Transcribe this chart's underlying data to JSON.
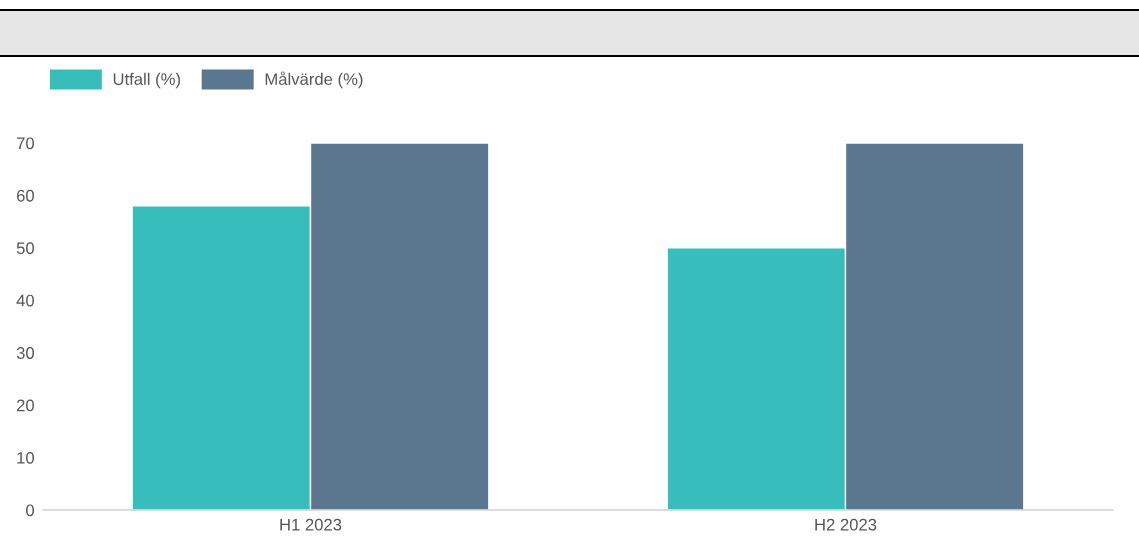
{
  "chart_data": {
    "type": "bar",
    "categories": [
      "H1 2023",
      "H2 2023"
    ],
    "series": [
      {
        "name": "Utfall (%)",
        "color": "#38bdbd",
        "values": [
          58,
          50
        ]
      },
      {
        "name": "Målvärde (%)",
        "color": "#5b778f",
        "values": [
          70,
          70
        ]
      }
    ],
    "ylim": [
      0,
      70
    ],
    "yticks": [
      0,
      10,
      20,
      30,
      40,
      50,
      60,
      70
    ],
    "grid": false,
    "legend": "top left"
  }
}
